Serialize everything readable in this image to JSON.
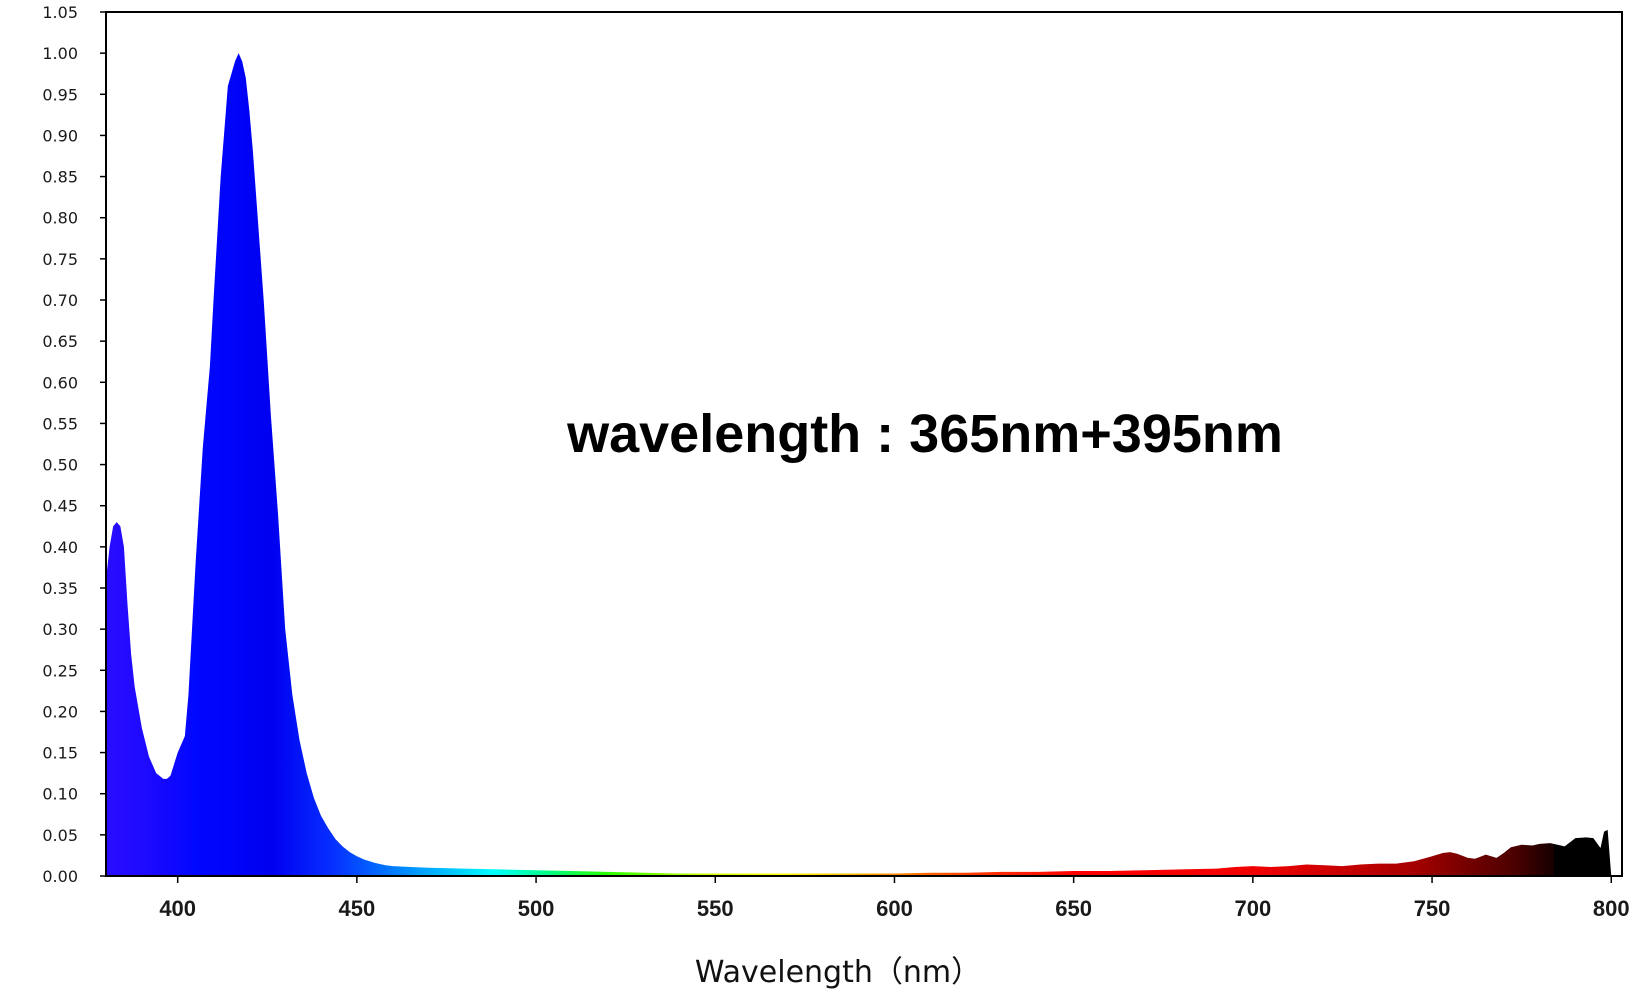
{
  "chart_data": {
    "type": "area",
    "title": "",
    "annotation": "wavelength : 365nm+395nm",
    "xlabel": "Wavelength（nm）",
    "ylabel": "",
    "xlim": [
      380,
      803
    ],
    "ylim": [
      0,
      1.05
    ],
    "x_ticks": [
      400,
      450,
      500,
      550,
      600,
      650,
      700,
      750,
      800
    ],
    "y_ticks": [
      "0.00",
      "0.05",
      "0.10",
      "0.15",
      "0.20",
      "0.25",
      "0.30",
      "0.35",
      "0.40",
      "0.45",
      "0.50",
      "0.55",
      "0.60",
      "0.65",
      "0.70",
      "0.75",
      "0.80",
      "0.85",
      "0.90",
      "0.95",
      "1.00",
      "1.05"
    ],
    "grid": false,
    "legend": "none",
    "fill": "spectral-gradient",
    "series": [
      {
        "x": [
          380,
          381,
          382,
          383,
          384,
          385,
          386,
          387,
          388,
          390,
          392,
          394,
          396,
          397,
          398,
          400,
          402,
          403,
          405,
          407,
          409,
          410,
          412,
          414,
          416,
          417,
          418,
          419,
          420,
          421,
          422,
          424,
          426,
          428,
          430,
          432,
          434,
          436,
          438,
          440,
          442,
          444,
          446,
          448,
          450,
          452,
          455,
          458,
          460,
          465,
          470,
          480,
          490,
          500,
          510,
          520,
          530,
          540,
          550,
          560,
          570,
          580,
          590,
          600,
          610,
          620,
          630,
          640,
          650,
          660,
          670,
          680,
          690,
          695,
          700,
          705,
          710,
          715,
          720,
          725,
          730,
          735,
          740,
          745,
          750,
          753,
          755,
          757,
          760,
          762,
          765,
          768,
          770,
          772,
          775,
          778,
          780,
          783,
          785,
          787,
          790,
          793,
          795,
          797,
          798,
          799,
          800
        ],
        "values": [
          0.36,
          0.4,
          0.425,
          0.43,
          0.425,
          0.4,
          0.33,
          0.27,
          0.23,
          0.18,
          0.145,
          0.125,
          0.118,
          0.118,
          0.122,
          0.15,
          0.17,
          0.22,
          0.38,
          0.52,
          0.62,
          0.7,
          0.85,
          0.96,
          0.99,
          1.0,
          0.99,
          0.97,
          0.93,
          0.88,
          0.82,
          0.7,
          0.56,
          0.44,
          0.3,
          0.22,
          0.165,
          0.125,
          0.095,
          0.073,
          0.058,
          0.045,
          0.036,
          0.029,
          0.024,
          0.02,
          0.016,
          0.013,
          0.012,
          0.011,
          0.01,
          0.009,
          0.008,
          0.007,
          0.006,
          0.005,
          0.004,
          0.003,
          0.003,
          0.003,
          0.003,
          0.003,
          0.003,
          0.003,
          0.004,
          0.004,
          0.005,
          0.005,
          0.006,
          0.006,
          0.007,
          0.008,
          0.009,
          0.011,
          0.012,
          0.011,
          0.012,
          0.014,
          0.013,
          0.012,
          0.014,
          0.015,
          0.015,
          0.018,
          0.024,
          0.028,
          0.029,
          0.027,
          0.022,
          0.021,
          0.026,
          0.022,
          0.028,
          0.035,
          0.038,
          0.037,
          0.039,
          0.04,
          0.038,
          0.036,
          0.046,
          0.047,
          0.046,
          0.034,
          0.054,
          0.056,
          0.0
        ]
      }
    ]
  }
}
